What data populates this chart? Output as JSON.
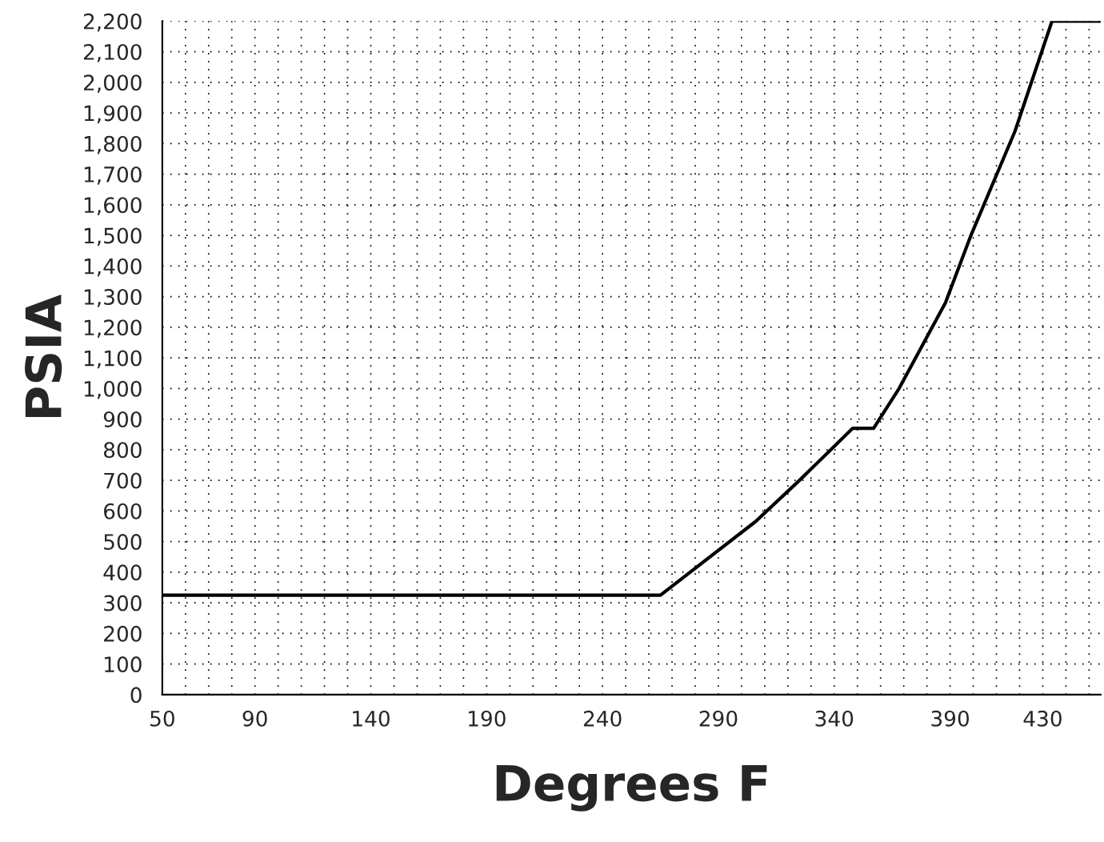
{
  "chart_data": {
    "type": "line",
    "xlabel": "Degrees F",
    "ylabel": "PSIA",
    "x": [
      50,
      265,
      306,
      325,
      348,
      357,
      368,
      388,
      399,
      418,
      434,
      455
    ],
    "series": [
      {
        "color": "#000000",
        "values": [
          325,
          325,
          565,
          700,
          870,
          870,
          1000,
          1280,
          1500,
          1840,
          2200,
          2200
        ]
      }
    ],
    "xlim": [
      50,
      455
    ],
    "xticks": [
      {
        "value": 50,
        "label": "50"
      },
      {
        "value": 60,
        "label": null
      },
      {
        "value": 70,
        "label": null
      },
      {
        "value": 80,
        "label": null
      },
      {
        "value": 90,
        "label": "90"
      },
      {
        "value": 100,
        "label": null
      },
      {
        "value": 110,
        "label": null
      },
      {
        "value": 120,
        "label": null
      },
      {
        "value": 130,
        "label": null
      },
      {
        "value": 140,
        "label": "140"
      },
      {
        "value": 150,
        "label": null
      },
      {
        "value": 160,
        "label": null
      },
      {
        "value": 170,
        "label": null
      },
      {
        "value": 180,
        "label": null
      },
      {
        "value": 190,
        "label": "190"
      },
      {
        "value": 200,
        "label": null
      },
      {
        "value": 210,
        "label": null
      },
      {
        "value": 220,
        "label": null
      },
      {
        "value": 230,
        "label": null
      },
      {
        "value": 240,
        "label": "240"
      },
      {
        "value": 250,
        "label": null
      },
      {
        "value": 260,
        "label": null
      },
      {
        "value": 270,
        "label": null
      },
      {
        "value": 280,
        "label": null
      },
      {
        "value": 290,
        "label": "290"
      },
      {
        "value": 300,
        "label": null
      },
      {
        "value": 310,
        "label": null
      },
      {
        "value": 320,
        "label": null
      },
      {
        "value": 330,
        "label": null
      },
      {
        "value": 340,
        "label": "340"
      },
      {
        "value": 350,
        "label": null
      },
      {
        "value": 360,
        "label": null
      },
      {
        "value": 370,
        "label": null
      },
      {
        "value": 380,
        "label": null
      },
      {
        "value": 390,
        "label": "390"
      },
      {
        "value": 400,
        "label": null
      },
      {
        "value": 410,
        "label": null
      },
      {
        "value": 420,
        "label": null
      },
      {
        "value": 430,
        "label": "430"
      },
      {
        "value": 440,
        "label": null
      },
      {
        "value": 450,
        "label": null
      }
    ],
    "ylim": [
      0,
      2200
    ],
    "yticks": [
      0,
      100,
      200,
      300,
      400,
      500,
      600,
      700,
      800,
      900,
      {
        "value": 1000,
        "label": "1,000"
      },
      {
        "value": 1100,
        "label": "1,100"
      },
      {
        "value": 1200,
        "label": "1,200"
      },
      {
        "value": 1300,
        "label": "1,300"
      },
      {
        "value": 1400,
        "label": "1,400"
      },
      {
        "value": 1500,
        "label": "1,500"
      },
      {
        "value": 1600,
        "label": "1,600"
      },
      {
        "value": 1700,
        "label": "1,700"
      },
      {
        "value": 1800,
        "label": "1,800"
      },
      {
        "value": 1900,
        "label": "1,900"
      },
      {
        "value": 2000,
        "label": "2,000"
      },
      {
        "value": 2100,
        "label": "2,100"
      },
      {
        "value": 2200,
        "label": "2,200"
      }
    ],
    "grid": true,
    "line_style": "solid",
    "marker": "none"
  }
}
